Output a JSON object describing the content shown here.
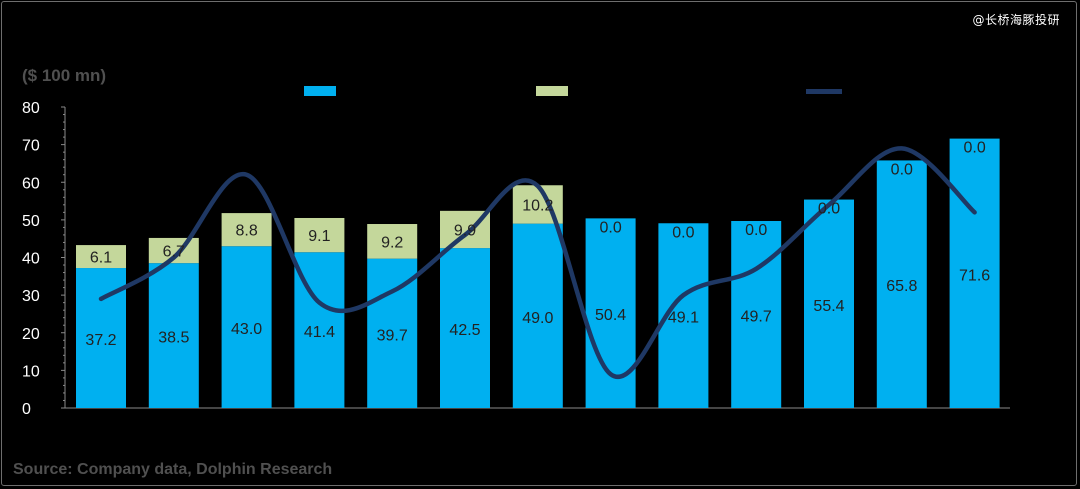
{
  "watermark": "@长桥海豚投研",
  "unit_label": "($ 100 mn)",
  "source": "Source:  Company data, Dolphin Research",
  "colors": {
    "background": "#000000",
    "bar_main": "#00b0f0",
    "bar_stack": "#c4d79b",
    "line": "#1f3864",
    "axis_text": "#ffffff",
    "value_text": "#222222"
  },
  "chart_data": {
    "type": "bar",
    "stacked": true,
    "title": "",
    "xlabel": "",
    "ylabel": "($ 100 mn)",
    "ylim": [
      0,
      80
    ],
    "yticks": [
      0,
      10,
      20,
      30,
      40,
      50,
      60,
      70,
      80
    ],
    "legend_position": "top",
    "categories": [
      "",
      "",
      "",
      "",
      "",
      "",
      "",
      "",
      "",
      "",
      "",
      "",
      ""
    ],
    "series": [
      {
        "type": "bar",
        "color": "#00b0f0",
        "values": [
          37.2,
          38.5,
          43.0,
          41.4,
          39.7,
          42.5,
          49.0,
          50.4,
          49.1,
          49.7,
          55.4,
          65.8,
          71.6
        ],
        "labels": [
          "37.2",
          "38.5",
          "43.0",
          "41.4",
          "39.7",
          "42.5",
          "49.0",
          "50.4",
          "49.1",
          "49.7",
          "55.4",
          "65.8",
          "71.6"
        ]
      },
      {
        "type": "bar",
        "color": "#c4d79b",
        "values": [
          6.1,
          6.7,
          8.8,
          9.1,
          9.2,
          9.9,
          10.2,
          0.0,
          0.0,
          0.0,
          0.0,
          0.0,
          0.0
        ],
        "labels": [
          "6.1",
          "6.7",
          "8.8",
          "9.1",
          "9.2",
          "9.9",
          "10.2",
          "0.0",
          "0.0",
          "0.0",
          "0.0",
          "0.0",
          "0.0"
        ]
      },
      {
        "type": "line",
        "color": "#1f3864",
        "values": [
          29,
          40,
          62,
          28,
          31,
          46,
          59,
          9,
          30,
          37,
          54,
          69,
          52
        ]
      }
    ]
  }
}
